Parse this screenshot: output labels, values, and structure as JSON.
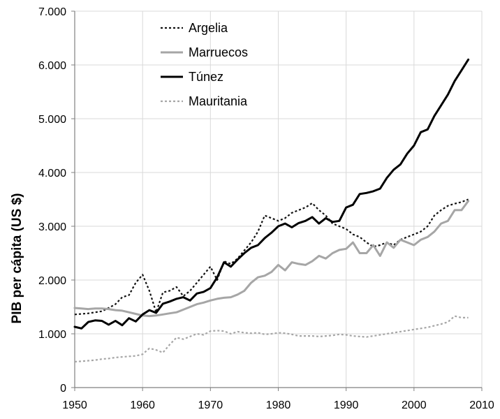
{
  "chart_data": {
    "type": "line",
    "title": "",
    "xlabel": "",
    "ylabel": "PIB per cápita (US $)",
    "xlim": [
      1950,
      2010
    ],
    "ylim": [
      0,
      7000
    ],
    "x_ticks": [
      1950,
      1960,
      1970,
      1980,
      1990,
      2000,
      2010
    ],
    "y_ticks": [
      0,
      1000,
      2000,
      3000,
      4000,
      5000,
      6000,
      7000
    ],
    "x_tick_labels": [
      "1950",
      "1960",
      "1970",
      "1980",
      "1990",
      "2000",
      "2010"
    ],
    "y_tick_labels": [
      "0",
      "1.000",
      "2.000",
      "3.000",
      "4.000",
      "5.000",
      "6.000",
      "7.000"
    ],
    "grid": "vertical-and-horizontal",
    "legend": "top-left",
    "series": [
      {
        "name": "Argelia",
        "color": "#111111",
        "dash": "dotted",
        "x": [
          1950,
          1951,
          1952,
          1953,
          1954,
          1955,
          1956,
          1957,
          1958,
          1959,
          1960,
          1961,
          1962,
          1963,
          1964,
          1965,
          1966,
          1967,
          1968,
          1969,
          1970,
          1971,
          1972,
          1973,
          1974,
          1975,
          1976,
          1977,
          1978,
          1979,
          1980,
          1981,
          1982,
          1983,
          1984,
          1985,
          1986,
          1987,
          1988,
          1989,
          1990,
          1991,
          1992,
          1993,
          1994,
          1995,
          1996,
          1997,
          1998,
          1999,
          2000,
          2001,
          2002,
          2003,
          2004,
          2005,
          2006,
          2007,
          2008
        ],
        "y": [
          1360,
          1370,
          1380,
          1400,
          1420,
          1480,
          1550,
          1680,
          1720,
          1950,
          2100,
          1800,
          1400,
          1770,
          1800,
          1870,
          1700,
          1800,
          1950,
          2100,
          2250,
          2000,
          2350,
          2300,
          2400,
          2550,
          2700,
          2900,
          3200,
          3150,
          3100,
          3150,
          3250,
          3300,
          3350,
          3430,
          3300,
          3200,
          3050,
          3000,
          2950,
          2850,
          2800,
          2700,
          2620,
          2650,
          2700,
          2650,
          2750,
          2800,
          2850,
          2900,
          3000,
          3200,
          3300,
          3380,
          3420,
          3450,
          3500
        ]
      },
      {
        "name": "Marruecos",
        "color": "#a6a6a6",
        "dash": "solid",
        "x": [
          1950,
          1951,
          1952,
          1953,
          1954,
          1955,
          1956,
          1957,
          1958,
          1959,
          1960,
          1961,
          1962,
          1963,
          1964,
          1965,
          1966,
          1967,
          1968,
          1969,
          1970,
          1971,
          1972,
          1973,
          1974,
          1975,
          1976,
          1977,
          1978,
          1979,
          1980,
          1981,
          1982,
          1983,
          1984,
          1985,
          1986,
          1987,
          1988,
          1989,
          1990,
          1991,
          1992,
          1993,
          1994,
          1995,
          1996,
          1997,
          1998,
          1999,
          2000,
          2001,
          2002,
          2003,
          2004,
          2005,
          2006,
          2007,
          2008
        ],
        "y": [
          1480,
          1470,
          1460,
          1470,
          1470,
          1460,
          1440,
          1430,
          1400,
          1370,
          1340,
          1330,
          1340,
          1360,
          1380,
          1400,
          1450,
          1500,
          1550,
          1580,
          1620,
          1650,
          1670,
          1680,
          1730,
          1800,
          1950,
          2050,
          2080,
          2150,
          2280,
          2180,
          2330,
          2300,
          2280,
          2350,
          2450,
          2400,
          2500,
          2560,
          2580,
          2700,
          2500,
          2500,
          2650,
          2450,
          2700,
          2600,
          2750,
          2700,
          2650,
          2750,
          2800,
          2900,
          3050,
          3100,
          3300,
          3300,
          3470
        ]
      },
      {
        "name": "Túnez",
        "color": "#000000",
        "dash": "solid",
        "x": [
          1950,
          1951,
          1952,
          1953,
          1954,
          1955,
          1956,
          1957,
          1958,
          1959,
          1960,
          1961,
          1962,
          1963,
          1964,
          1965,
          1966,
          1967,
          1968,
          1969,
          1970,
          1971,
          1972,
          1973,
          1974,
          1975,
          1976,
          1977,
          1978,
          1979,
          1980,
          1981,
          1982,
          1983,
          1984,
          1985,
          1986,
          1987,
          1988,
          1989,
          1990,
          1991,
          1992,
          1993,
          1994,
          1995,
          1996,
          1997,
          1998,
          1999,
          2000,
          2001,
          2002,
          2003,
          2004,
          2005,
          2006,
          2007,
          2008
        ],
        "y": [
          1130,
          1100,
          1220,
          1250,
          1240,
          1170,
          1240,
          1160,
          1290,
          1230,
          1360,
          1440,
          1390,
          1560,
          1600,
          1650,
          1680,
          1620,
          1750,
          1780,
          1850,
          2050,
          2330,
          2250,
          2380,
          2500,
          2600,
          2650,
          2780,
          2880,
          3000,
          3050,
          2980,
          3060,
          3100,
          3170,
          3050,
          3150,
          3080,
          3100,
          3350,
          3400,
          3600,
          3620,
          3650,
          3700,
          3900,
          4050,
          4150,
          4350,
          4500,
          4750,
          4800,
          5050,
          5250,
          5450,
          5700,
          5900,
          6100
        ]
      },
      {
        "name": "Mauritania",
        "color": "#a6a6a6",
        "dash": "dotted",
        "x": [
          1950,
          1951,
          1952,
          1953,
          1954,
          1955,
          1956,
          1957,
          1958,
          1959,
          1960,
          1961,
          1962,
          1963,
          1964,
          1965,
          1966,
          1967,
          1968,
          1969,
          1970,
          1971,
          1972,
          1973,
          1974,
          1975,
          1976,
          1977,
          1978,
          1979,
          1980,
          1981,
          1982,
          1983,
          1984,
          1985,
          1986,
          1987,
          1988,
          1989,
          1990,
          1991,
          1992,
          1993,
          1994,
          1995,
          1996,
          1997,
          1998,
          1999,
          2000,
          2001,
          2002,
          2003,
          2004,
          2005,
          2006,
          2007,
          2008
        ],
        "y": [
          480,
          490,
          500,
          510,
          530,
          540,
          560,
          570,
          580,
          590,
          620,
          730,
          700,
          650,
          800,
          930,
          900,
          950,
          1000,
          980,
          1050,
          1060,
          1050,
          1000,
          1040,
          1020,
          1010,
          1020,
          990,
          1000,
          1020,
          1010,
          990,
          960,
          960,
          960,
          950,
          960,
          970,
          990,
          980,
          960,
          950,
          940,
          960,
          980,
          1000,
          1020,
          1040,
          1060,
          1080,
          1100,
          1120,
          1150,
          1180,
          1220,
          1330,
          1300,
          1300
        ]
      }
    ]
  }
}
